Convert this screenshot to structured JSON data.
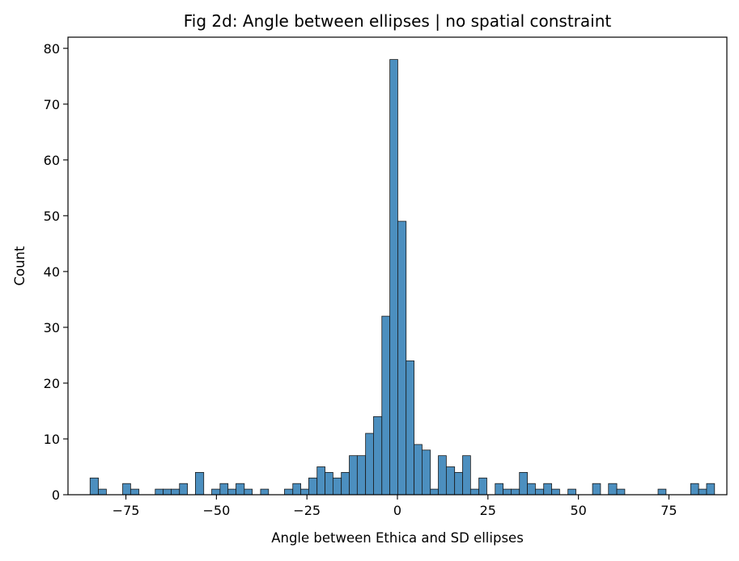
{
  "chart_data": {
    "type": "bar",
    "title": "Fig 2d: Angle between ellipses | no spatial constraint",
    "xlabel": "Angle between Ethica and SD ellipses",
    "ylabel": "Count",
    "xlim": [
      -91,
      91
    ],
    "ylim": [
      0,
      82
    ],
    "grid": false,
    "legend": "none",
    "bar_color": "#4c8fbf",
    "edge_color": "#1a1a1a",
    "xticks": [
      -75,
      -50,
      -25,
      0,
      25,
      50,
      75
    ],
    "xtick_labels": [
      "−75",
      "−50",
      "−25",
      "0",
      "25",
      "50",
      "75"
    ],
    "yticks": [
      0,
      10,
      20,
      30,
      40,
      50,
      60,
      70,
      80
    ],
    "ytick_labels": [
      "0",
      "10",
      "20",
      "30",
      "40",
      "50",
      "60",
      "70",
      "80"
    ],
    "bins": [
      {
        "x0": -84.9,
        "x1": -82.6,
        "count": 3
      },
      {
        "x0": -82.6,
        "x1": -80.4,
        "count": 1
      },
      {
        "x0": -75.9,
        "x1": -73.7,
        "count": 2
      },
      {
        "x0": -73.7,
        "x1": -71.4,
        "count": 1
      },
      {
        "x0": -66.9,
        "x1": -64.7,
        "count": 1
      },
      {
        "x0": -64.7,
        "x1": -62.5,
        "count": 1
      },
      {
        "x0": -62.5,
        "x1": -60.2,
        "count": 1
      },
      {
        "x0": -60.2,
        "x1": -58.0,
        "count": 2
      },
      {
        "x0": -55.8,
        "x1": -53.5,
        "count": 4
      },
      {
        "x0": -51.3,
        "x1": -49.0,
        "count": 1
      },
      {
        "x0": -49.0,
        "x1": -46.8,
        "count": 2
      },
      {
        "x0": -46.8,
        "x1": -44.6,
        "count": 1
      },
      {
        "x0": -44.6,
        "x1": -42.3,
        "count": 2
      },
      {
        "x0": -42.3,
        "x1": -40.1,
        "count": 1
      },
      {
        "x0": -37.8,
        "x1": -35.6,
        "count": 1
      },
      {
        "x0": -31.2,
        "x1": -28.9,
        "count": 1
      },
      {
        "x0": -28.9,
        "x1": -26.7,
        "count": 2
      },
      {
        "x0": -26.7,
        "x1": -24.5,
        "count": 1
      },
      {
        "x0": -24.5,
        "x1": -22.2,
        "count": 3
      },
      {
        "x0": -22.2,
        "x1": -20.0,
        "count": 5
      },
      {
        "x0": -20.0,
        "x1": -17.8,
        "count": 4
      },
      {
        "x0": -17.8,
        "x1": -15.5,
        "count": 3
      },
      {
        "x0": -15.5,
        "x1": -13.3,
        "count": 4
      },
      {
        "x0": -13.3,
        "x1": -11.1,
        "count": 7
      },
      {
        "x0": -11.1,
        "x1": -8.8,
        "count": 7
      },
      {
        "x0": -8.8,
        "x1": -6.6,
        "count": 11
      },
      {
        "x0": -6.6,
        "x1": -4.3,
        "count": 14
      },
      {
        "x0": -4.3,
        "x1": -2.1,
        "count": 32
      },
      {
        "x0": -2.1,
        "x1": 0.1,
        "count": 78
      },
      {
        "x0": 0.1,
        "x1": 2.4,
        "count": 49
      },
      {
        "x0": 2.4,
        "x1": 4.6,
        "count": 24
      },
      {
        "x0": 4.6,
        "x1": 6.8,
        "count": 9
      },
      {
        "x0": 6.8,
        "x1": 9.1,
        "count": 8
      },
      {
        "x0": 9.1,
        "x1": 11.3,
        "count": 1
      },
      {
        "x0": 11.3,
        "x1": 13.5,
        "count": 7
      },
      {
        "x0": 13.5,
        "x1": 15.8,
        "count": 5
      },
      {
        "x0": 15.8,
        "x1": 18.0,
        "count": 4
      },
      {
        "x0": 18.0,
        "x1": 20.2,
        "count": 7
      },
      {
        "x0": 20.2,
        "x1": 22.5,
        "count": 1
      },
      {
        "x0": 22.5,
        "x1": 24.7,
        "count": 3
      },
      {
        "x0": 27.0,
        "x1": 29.2,
        "count": 2
      },
      {
        "x0": 29.2,
        "x1": 31.4,
        "count": 1
      },
      {
        "x0": 31.4,
        "x1": 33.7,
        "count": 1
      },
      {
        "x0": 33.7,
        "x1": 35.9,
        "count": 4
      },
      {
        "x0": 35.9,
        "x1": 38.1,
        "count": 2
      },
      {
        "x0": 38.1,
        "x1": 40.4,
        "count": 1
      },
      {
        "x0": 40.4,
        "x1": 42.6,
        "count": 2
      },
      {
        "x0": 42.6,
        "x1": 44.8,
        "count": 1
      },
      {
        "x0": 47.1,
        "x1": 49.3,
        "count": 1
      },
      {
        "x0": 53.9,
        "x1": 56.1,
        "count": 2
      },
      {
        "x0": 58.3,
        "x1": 60.6,
        "count": 2
      },
      {
        "x0": 60.6,
        "x1": 62.8,
        "count": 1
      },
      {
        "x0": 72.0,
        "x1": 74.2,
        "count": 1
      },
      {
        "x0": 81.0,
        "x1": 83.2,
        "count": 2
      },
      {
        "x0": 83.2,
        "x1": 85.4,
        "count": 1
      },
      {
        "x0": 85.4,
        "x1": 87.6,
        "count": 2
      }
    ]
  }
}
